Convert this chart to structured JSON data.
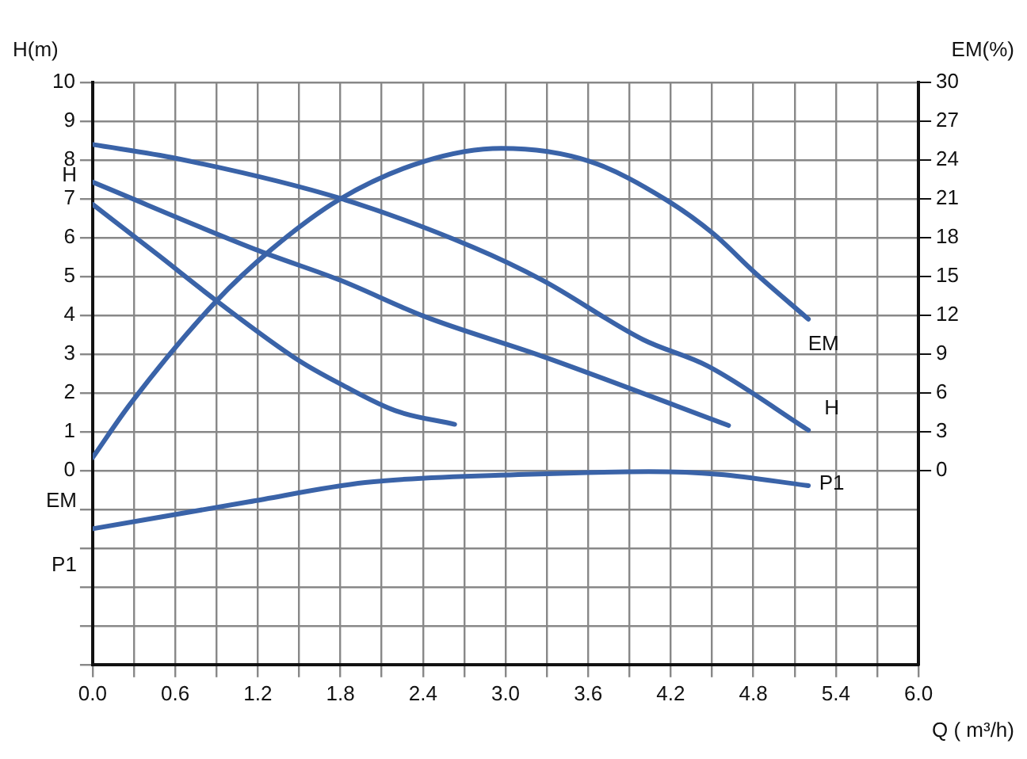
{
  "chart_data": {
    "type": "line",
    "xlabel": "Q ( m³/h)",
    "ylabel": "H(m)",
    "y2label": "EM(%)",
    "xlim": [
      0,
      6
    ],
    "xticks": [
      {
        "value": 0,
        "label": "0.0"
      },
      {
        "value": 0.3,
        "label": null
      },
      0.6,
      {
        "value": 0.9,
        "label": null
      },
      1.2,
      {
        "value": 1.5,
        "label": null
      },
      1.8,
      {
        "value": 2.1,
        "label": null
      },
      2.4,
      {
        "value": 2.7,
        "label": null
      },
      {
        "value": 3,
        "label": "3.0"
      },
      {
        "value": 3.3,
        "label": null
      },
      3.6,
      {
        "value": 3.9,
        "label": null
      },
      4.2,
      {
        "value": 4.5,
        "label": null
      },
      4.8,
      {
        "value": 5.1,
        "label": null
      },
      5.4,
      {
        "value": 5.7,
        "label": null
      },
      {
        "value": 6,
        "label": "6.0"
      }
    ],
    "ylim": [
      -5,
      10
    ],
    "yticks": [
      {
        "value": -5,
        "label": null
      },
      {
        "value": -4,
        "label": null
      },
      {
        "value": -3,
        "label": null
      },
      {
        "value": -2,
        "label": null
      },
      {
        "value": -1,
        "label": null
      },
      0,
      1,
      2,
      3,
      4,
      5,
      6,
      7,
      8,
      9,
      10
    ],
    "y2lim": [
      -15,
      30
    ],
    "y2ticks": [
      0,
      3,
      6,
      9,
      12,
      15,
      18,
      21,
      24,
      27,
      30
    ],
    "grid": true,
    "legend": false,
    "marker": "none",
    "line_style": "solid",
    "series": [
      {
        "color": "#3a63a8",
        "x": [
          0,
          0.48,
          0.89,
          1.5,
          1.8,
          2.2,
          2.63
        ],
        "values": [
          6.86,
          5.54,
          4.4,
          2.83,
          2.23,
          1.54,
          1.19
        ]
      },
      {
        "color": "#3a63a8",
        "x": [
          0,
          1.21,
          1.8,
          2.41,
          3.27,
          4.62
        ],
        "values": [
          7.43,
          5.66,
          4.9,
          3.97,
          2.94,
          1.16
        ]
      },
      {
        "color": "#3a63a8",
        "x": [
          0,
          0.61,
          1.8,
          2.76,
          3.27,
          4.0,
          4.47,
          5.2
        ],
        "values": [
          8.4,
          8.04,
          7.01,
          5.76,
          4.9,
          3.37,
          2.69,
          1.04
        ]
      },
      {
        "color": "#3a63a8",
        "axis": "y2",
        "x": [
          0,
          0.27,
          0.89,
          1.3,
          1.8,
          2.41,
          2.97,
          3.61,
          4.17,
          4.51,
          4.81,
          5.2
        ],
        "values": [
          1.0,
          5.1,
          13.0,
          17.1,
          21.0,
          23.9,
          24.9,
          23.9,
          20.9,
          18.3,
          15.3,
          11.7
        ]
      },
      {
        "color": "#3a63a8",
        "x": [
          0,
          1.13,
          1.98,
          3.14,
          4.04,
          4.55,
          5.2
        ],
        "values": [
          -1.5,
          -0.81,
          -0.31,
          -0.1,
          -0.03,
          -0.1,
          -0.39
        ]
      }
    ],
    "annotations": [
      "H",
      "EM",
      "P1",
      "EM",
      "H",
      "P1"
    ]
  }
}
